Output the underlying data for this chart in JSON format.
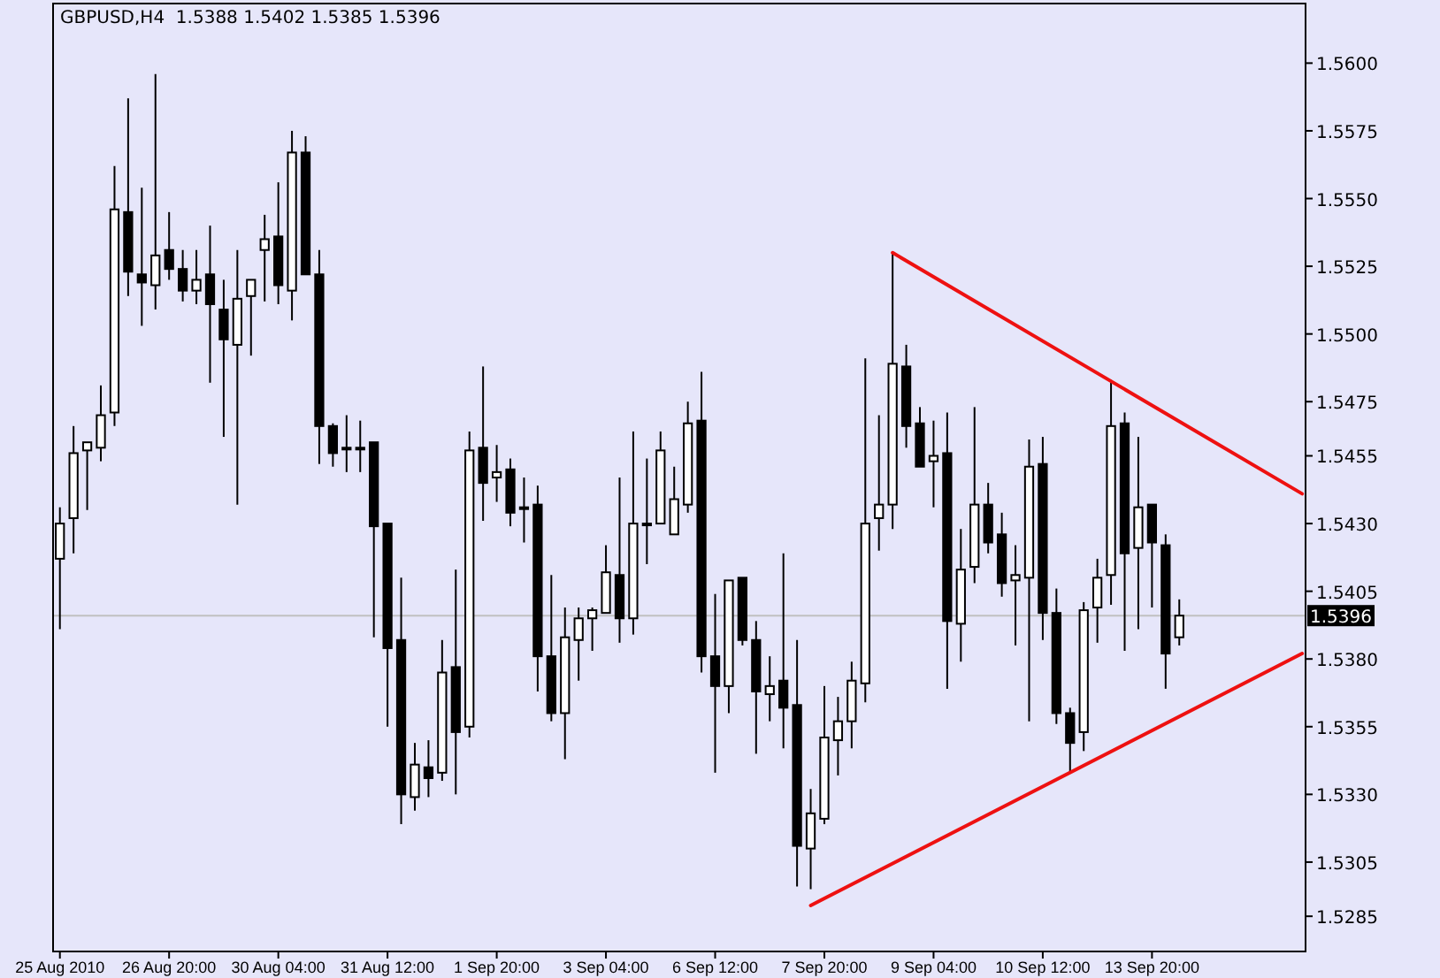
{
  "chart_data": {
    "type": "candlestick",
    "title": "GBPUSD,H4  1.5388 1.5402 1.5385 1.5396",
    "categories": [
      "25 Aug 2010",
      null,
      null,
      null,
      null,
      null,
      null,
      null,
      "26 Aug 20:00",
      null,
      null,
      null,
      null,
      null,
      null,
      null,
      "30 Aug 04:00",
      null,
      null,
      null,
      null,
      null,
      null,
      null,
      "31 Aug 12:00",
      null,
      null,
      null,
      null,
      null,
      null,
      null,
      "1 Sep 20:00",
      null,
      null,
      null,
      null,
      null,
      null,
      null,
      "3 Sep 04:00",
      null,
      null,
      null,
      null,
      null,
      null,
      null,
      "6 Sep 12:00",
      null,
      null,
      null,
      null,
      null,
      null,
      null,
      "7 Sep 20:00",
      null,
      null,
      null,
      null,
      null,
      null,
      null,
      "9 Sep 04:00",
      null,
      null,
      null,
      null,
      null,
      null,
      null,
      "10 Sep 12:00",
      null,
      null,
      null,
      null,
      null,
      null,
      null,
      "13 Sep 20:00",
      null,
      null,
      null,
      null,
      null,
      null,
      null,
      null,
      null,
      null,
      null
    ],
    "ohlc": [
      [
        1.5417,
        1.5436,
        1.5391,
        1.543
      ],
      [
        1.5432,
        1.5466,
        1.5419,
        1.5456
      ],
      [
        1.5457,
        1.546,
        1.5435,
        1.546
      ],
      [
        1.5458,
        1.5481,
        1.5453,
        1.547
      ],
      [
        1.5471,
        1.5562,
        1.5466,
        1.5546
      ],
      [
        1.5545,
        1.5587,
        1.5514,
        1.5523
      ],
      [
        1.5522,
        1.5554,
        1.5503,
        1.5519
      ],
      [
        1.5518,
        1.5596,
        1.5509,
        1.5529
      ],
      [
        1.5531,
        1.5545,
        1.552,
        1.5524
      ],
      [
        1.5524,
        1.5531,
        1.5512,
        1.5516
      ],
      [
        1.5516,
        1.5531,
        1.5511,
        1.552
      ],
      [
        1.5522,
        1.554,
        1.5482,
        1.5511
      ],
      [
        1.5509,
        1.552,
        1.5462,
        1.5498
      ],
      [
        1.5496,
        1.5531,
        1.5437,
        1.5513
      ],
      [
        1.5514,
        1.552,
        1.5492,
        1.552
      ],
      [
        1.5531,
        1.5544,
        1.5512,
        1.5535
      ],
      [
        1.5536,
        1.5556,
        1.5511,
        1.5518
      ],
      [
        1.5516,
        1.5575,
        1.5505,
        1.5567
      ],
      [
        1.5567,
        1.5573,
        1.5522,
        1.5522
      ],
      [
        1.5522,
        1.5531,
        1.5452,
        1.5466
      ],
      [
        1.5466,
        1.5467,
        1.5451,
        1.5456
      ],
      [
        1.5458,
        1.547,
        1.5449,
        1.5458
      ],
      [
        1.5458,
        1.5468,
        1.5449,
        1.5458
      ],
      [
        1.546,
        1.546,
        1.5388,
        1.5429
      ],
      [
        1.543,
        1.543,
        1.5355,
        1.5384
      ],
      [
        1.5387,
        1.541,
        1.5319,
        1.533
      ],
      [
        1.5329,
        1.5349,
        1.5324,
        1.5341
      ],
      [
        1.534,
        1.535,
        1.5329,
        1.5336
      ],
      [
        1.5338,
        1.5387,
        1.5335,
        1.5375
      ],
      [
        1.5377,
        1.5413,
        1.533,
        1.5353
      ],
      [
        1.5355,
        1.5464,
        1.5351,
        1.5457
      ],
      [
        1.5458,
        1.5488,
        1.5431,
        1.5445
      ],
      [
        1.5447,
        1.5459,
        1.5438,
        1.5449
      ],
      [
        1.545,
        1.5454,
        1.5429,
        1.5434
      ],
      [
        1.5436,
        1.5447,
        1.5423,
        1.5436
      ],
      [
        1.5437,
        1.5444,
        1.5368,
        1.5381
      ],
      [
        1.5381,
        1.5411,
        1.5357,
        1.536
      ],
      [
        1.536,
        1.5399,
        1.5343,
        1.5388
      ],
      [
        1.5387,
        1.5399,
        1.5372,
        1.5395
      ],
      [
        1.5395,
        1.5399,
        1.5383,
        1.5398
      ],
      [
        1.5397,
        1.5422,
        1.5397,
        1.5412
      ],
      [
        1.5411,
        1.5447,
        1.5386,
        1.5395
      ],
      [
        1.5395,
        1.5464,
        1.5389,
        1.543
      ],
      [
        1.543,
        1.5454,
        1.5415,
        1.543
      ],
      [
        1.543,
        1.5464,
        1.543,
        1.5457
      ],
      [
        1.5426,
        1.5451,
        1.5426,
        1.5439
      ],
      [
        1.5437,
        1.5475,
        1.5434,
        1.5467
      ],
      [
        1.5468,
        1.5486,
        1.5375,
        1.5381
      ],
      [
        1.5381,
        1.5404,
        1.5338,
        1.537
      ],
      [
        1.537,
        1.5409,
        1.536,
        1.5409
      ],
      [
        1.541,
        1.541,
        1.5385,
        1.5387
      ],
      [
        1.5387,
        1.5394,
        1.5345,
        1.5368
      ],
      [
        1.5367,
        1.5381,
        1.5357,
        1.537
      ],
      [
        1.5372,
        1.5419,
        1.5347,
        1.5362
      ],
      [
        1.5363,
        1.5387,
        1.5296,
        1.5311
      ],
      [
        1.531,
        1.5332,
        1.5295,
        1.5323
      ],
      [
        1.5321,
        1.537,
        1.5319,
        1.5351
      ],
      [
        1.535,
        1.5366,
        1.5337,
        1.5357
      ],
      [
        1.5357,
        1.5379,
        1.5347,
        1.5372
      ],
      [
        1.5371,
        1.5491,
        1.5364,
        1.543
      ],
      [
        1.5432,
        1.547,
        1.542,
        1.5437
      ],
      [
        1.5437,
        1.553,
        1.5428,
        1.5489
      ],
      [
        1.5488,
        1.5496,
        1.5458,
        1.5466
      ],
      [
        1.5467,
        1.5473,
        1.5451,
        1.5451
      ],
      [
        1.5453,
        1.5468,
        1.5436,
        1.5455
      ],
      [
        1.5456,
        1.5471,
        1.5369,
        1.5394
      ],
      [
        1.5393,
        1.5428,
        1.5379,
        1.5413
      ],
      [
        1.5414,
        1.5473,
        1.5408,
        1.5437
      ],
      [
        1.5437,
        1.5445,
        1.5419,
        1.5423
      ],
      [
        1.5426,
        1.5434,
        1.5403,
        1.5408
      ],
      [
        1.5409,
        1.5422,
        1.5385,
        1.5411
      ],
      [
        1.541,
        1.5461,
        1.5357,
        1.5451
      ],
      [
        1.5452,
        1.5462,
        1.5387,
        1.5397
      ],
      [
        1.5397,
        1.5406,
        1.5356,
        1.536
      ],
      [
        1.536,
        1.5362,
        1.5338,
        1.5349
      ],
      [
        1.5353,
        1.5401,
        1.5346,
        1.5398
      ],
      [
        1.5399,
        1.5417,
        1.5386,
        1.541
      ],
      [
        1.5411,
        1.5483,
        1.54,
        1.5466
      ],
      [
        1.5467,
        1.5471,
        1.5383,
        1.5419
      ],
      [
        1.5421,
        1.5462,
        1.5391,
        1.5436
      ],
      [
        1.5437,
        1.5437,
        1.5399,
        1.5423
      ],
      [
        1.5422,
        1.5426,
        1.5369,
        1.5382
      ],
      [
        1.5388,
        1.5402,
        1.5385,
        1.5396
      ],
      null,
      null,
      null,
      null,
      null,
      null,
      null,
      null,
      null
    ],
    "series": [
      {
        "type": "line",
        "color": "#ee1111",
        "values": [
          null,
          null,
          null,
          null,
          null,
          null,
          null,
          null,
          null,
          null,
          null,
          null,
          null,
          null,
          null,
          null,
          null,
          null,
          null,
          null,
          null,
          null,
          null,
          null,
          null,
          null,
          null,
          null,
          null,
          null,
          null,
          null,
          null,
          null,
          null,
          null,
          null,
          null,
          null,
          null,
          null,
          null,
          null,
          null,
          null,
          null,
          null,
          null,
          null,
          null,
          null,
          null,
          null,
          null,
          null,
          null,
          null,
          null,
          null,
          null,
          null,
          1.553,
          null,
          null,
          null,
          null,
          null,
          null,
          null,
          null,
          null,
          null,
          null,
          null,
          null,
          null,
          null,
          null,
          null,
          null,
          null,
          null,
          null,
          null,
          null,
          null,
          null,
          null,
          null,
          null,
          null,
          1.5441
        ]
      },
      {
        "type": "line",
        "color": "#ee1111",
        "values": [
          null,
          null,
          null,
          null,
          null,
          null,
          null,
          null,
          null,
          null,
          null,
          null,
          null,
          null,
          null,
          null,
          null,
          null,
          null,
          null,
          null,
          null,
          null,
          null,
          null,
          null,
          null,
          null,
          null,
          null,
          null,
          null,
          null,
          null,
          null,
          null,
          null,
          null,
          null,
          null,
          null,
          null,
          null,
          null,
          null,
          null,
          null,
          null,
          null,
          null,
          null,
          null,
          null,
          null,
          null,
          1.5289,
          null,
          null,
          null,
          null,
          null,
          null,
          null,
          null,
          null,
          null,
          null,
          null,
          null,
          null,
          null,
          null,
          null,
          null,
          null,
          null,
          null,
          null,
          null,
          null,
          null,
          null,
          null,
          null,
          null,
          null,
          null,
          null,
          null,
          null,
          null,
          1.5382
        ]
      }
    ],
    "ylim": [
      1.5272,
      1.5622
    ],
    "yticks": [
      {
        "value": 1.56,
        "label": "1.5600"
      },
      1.5575,
      {
        "value": 1.555,
        "label": "1.5550"
      },
      1.5525,
      {
        "value": 1.55,
        "label": "1.5500"
      },
      1.5475,
      1.5455,
      {
        "value": 1.543,
        "label": "1.5430"
      },
      1.5405,
      {
        "value": 1.538,
        "label": "1.5380"
      },
      1.5355,
      {
        "value": 1.533,
        "label": "1.5330"
      },
      1.5305,
      1.5285
    ],
    "ref_lines": [
      {
        "axis": "y",
        "value": 1.5396,
        "label": "1.5396",
        "color": "#c0c0c0"
      }
    ],
    "grid": false
  }
}
